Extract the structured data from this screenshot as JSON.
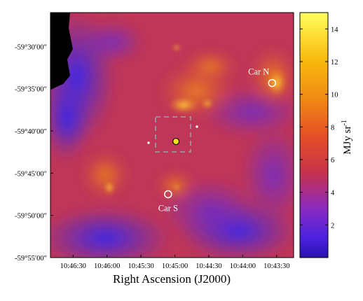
{
  "chart_data": {
    "type": "heatmap",
    "xlabel": "Right Ascension (J2000)",
    "ylabel": "",
    "x_ticks": [
      "10:46:30",
      "10:46:00",
      "10:45:30",
      "10:45:00",
      "10:44:30",
      "10:44:00",
      "10:43:30"
    ],
    "y_ticks": [
      "-59°30′00″",
      "-59°35′00″",
      "-59°40′00″",
      "-59°45′00″",
      "-59°50′00″",
      "-59°55′00″"
    ],
    "colorbar": {
      "label": "MJy sr",
      "label_superscript": "-1",
      "range": [
        0,
        15
      ],
      "ticks": [
        "2",
        "4",
        "6",
        "8",
        "10",
        "12",
        "14"
      ],
      "colormap": [
        "#000000",
        "#2a13b8",
        "#3a28ff",
        "#7a2ac9",
        "#c8324a",
        "#ea5a25",
        "#f6a40e",
        "#fde23a",
        "#ffff60"
      ]
    },
    "annotations": [
      {
        "label": "Car N",
        "ra": "10:43:34",
        "dec": "-59°34′20″",
        "marker": "open-circle"
      },
      {
        "label": "Car S",
        "ra": "10:45:06",
        "dec": "-59°47′30″",
        "marker": "open-circle"
      },
      {
        "label": "",
        "ra": "10:44:59",
        "dec": "-59°41′15″",
        "marker": "filled-circle",
        "color": "#f2e21a"
      }
    ],
    "grid": false,
    "colors": {
      "low": "#3322dd",
      "mid": "#c8324a",
      "high": "#fde23a",
      "void": "#000000"
    }
  }
}
